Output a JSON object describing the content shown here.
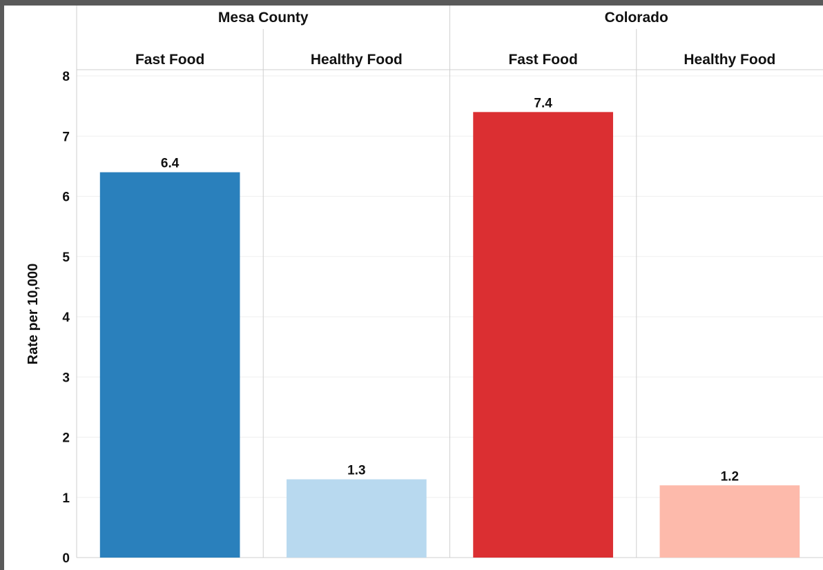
{
  "chart_data": {
    "type": "bar",
    "title": "",
    "xlabel": "",
    "ylabel": "Rate per 10,000",
    "ylim": [
      0,
      8
    ],
    "yticks": [
      0,
      1,
      2,
      3,
      4,
      5,
      6,
      7,
      8
    ],
    "grid": true,
    "legend": "none",
    "groups": [
      {
        "name": "Mesa County",
        "bars": [
          {
            "category": "Fast Food",
            "value": 6.4,
            "label": "6.4",
            "color": "#2a80bc"
          },
          {
            "category": "Healthy Food",
            "value": 1.3,
            "label": "1.3",
            "color": "#b8d9ef"
          }
        ]
      },
      {
        "name": "Colorado",
        "bars": [
          {
            "category": "Fast Food",
            "value": 7.4,
            "label": "7.4",
            "color": "#db2f32"
          },
          {
            "category": "Healthy Food",
            "value": 1.2,
            "label": "1.2",
            "color": "#fdbaab"
          }
        ]
      }
    ]
  }
}
